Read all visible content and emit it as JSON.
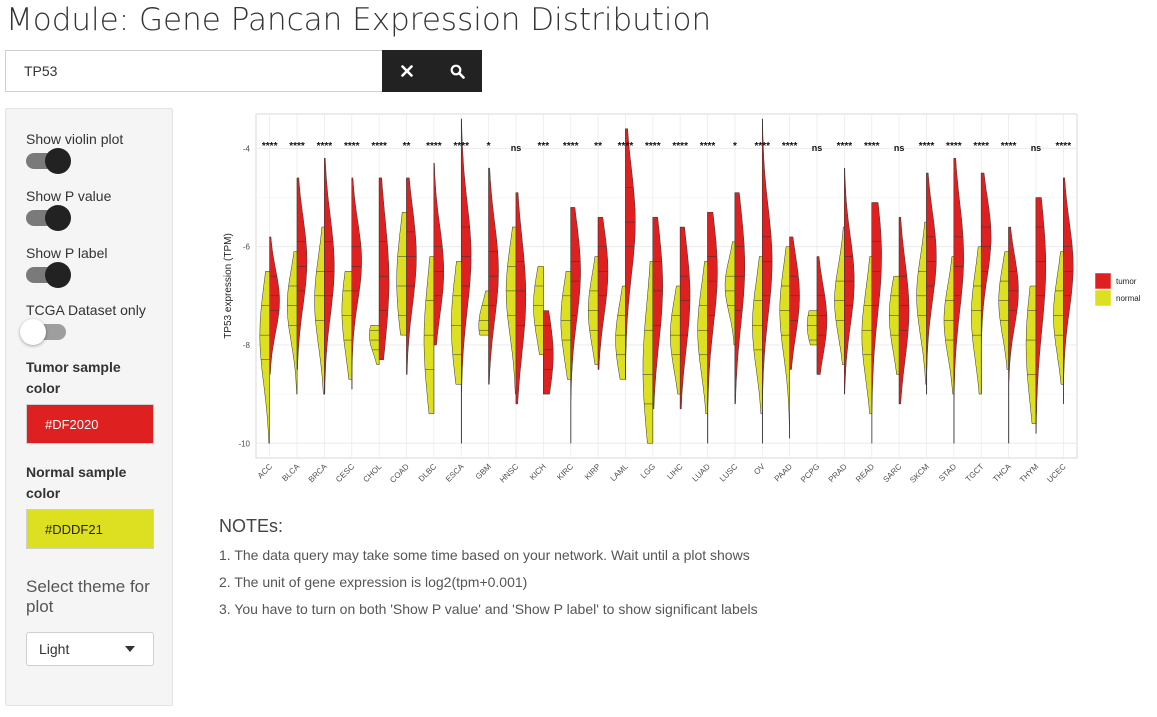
{
  "page": {
    "title": "Module: Gene Pancan Expression Distribution"
  },
  "search": {
    "value": "TP53",
    "clear_icon": "close-icon",
    "search_icon": "search-icon"
  },
  "sidebar": {
    "show_violin": "Show violin plot",
    "show_p_value": "Show P value",
    "show_p_label": "Show P label",
    "tcga_only": "TCGA Dataset only",
    "tumor_color_label": "Tumor sample color",
    "tumor_color_value": "#DF2020",
    "normal_color_label": "Normal sample color",
    "normal_color_value": "#DDDF21",
    "theme_label": "Select theme for plot",
    "theme_value": "Light",
    "toggles": {
      "show_violin": true,
      "show_p_value": true,
      "show_p_label": true,
      "tcga_only": false
    }
  },
  "notes": {
    "title": "NOTEs:",
    "items": [
      "1. The data query may take some time based on your network. Wait until a plot shows",
      "2. The unit of gene expression is log2(tpm+0.001)",
      "3. You have to turn on both 'Show P value' and 'Show P label' to show significant labels"
    ]
  },
  "colors": {
    "tumor": "#DF2020",
    "normal": "#DDDF21",
    "dark_button": "#222222"
  },
  "chart_data": {
    "type": "violin",
    "ylabel": "TP53 expression (TPM)",
    "ylim": [
      -10.3,
      -3.3
    ],
    "yticks": [
      -4,
      -6,
      -8,
      -10
    ],
    "legend": {
      "position": "right",
      "entries": [
        "tumor",
        "normal"
      ]
    },
    "grid": true,
    "categories": [
      "ACC",
      "BLCA",
      "BRCA",
      "CESC",
      "CHOL",
      "COAD",
      "DLBC",
      "ESCA",
      "GBM",
      "HNSC",
      "KICH",
      "KIRC",
      "KIRP",
      "LAML",
      "LGG",
      "LIHC",
      "LUAD",
      "LUSC",
      "OV",
      "PAAD",
      "PCPG",
      "PRAD",
      "READ",
      "SARC",
      "SKCM",
      "STAD",
      "TGCT",
      "THCA",
      "THYM",
      "UCEC"
    ],
    "p_labels": [
      "****",
      "****",
      "****",
      "****",
      "****",
      "**",
      "****",
      "****",
      "*",
      "ns",
      "***",
      "****",
      "**",
      "****",
      "****",
      "****",
      "****",
      "*",
      "****",
      "****",
      "ns",
      "****",
      "****",
      "ns",
      "****",
      "****",
      "****",
      "****",
      "ns",
      "****"
    ],
    "series": [
      {
        "name": "tumor",
        "values": [
          {
            "min": -8.6,
            "q1": -7.3,
            "med": -7.0,
            "q3": -6.6,
            "max": -5.8,
            "peak": -7.1
          },
          {
            "min": -8.5,
            "q1": -6.9,
            "med": -6.4,
            "q3": -5.9,
            "max": -4.6,
            "peak": -6.3
          },
          {
            "min": -9.0,
            "q1": -7.0,
            "med": -6.5,
            "q3": -5.9,
            "max": -4.2,
            "peak": -6.4
          },
          {
            "min": -8.9,
            "q1": -6.9,
            "med": -6.4,
            "q3": -6.0,
            "max": -4.6,
            "peak": -6.3
          },
          {
            "min": -8.3,
            "q1": -7.3,
            "med": -6.6,
            "q3": -5.9,
            "max": -4.6,
            "peak": -6.7
          },
          {
            "min": -8.6,
            "q1": -6.8,
            "med": -6.2,
            "q3": -5.7,
            "max": -4.6,
            "peak": -6.2
          },
          {
            "min": -8.0,
            "q1": -7.0,
            "med": -6.5,
            "q3": -6.0,
            "max": -4.3,
            "peak": -6.5
          },
          {
            "min": -10.0,
            "q1": -6.8,
            "med": -6.2,
            "q3": -5.6,
            "max": -3.4,
            "peak": -6.2
          },
          {
            "min": -8.8,
            "q1": -7.2,
            "med": -6.6,
            "q3": -6.1,
            "max": -4.4,
            "peak": -6.5
          },
          {
            "min": -9.2,
            "q1": -7.6,
            "med": -6.9,
            "q3": -6.3,
            "max": -4.9,
            "peak": -7.0
          },
          {
            "min": -9.0,
            "q1": -8.5,
            "med": -8.1,
            "q3": -7.6,
            "max": -7.3,
            "peak": -8.2
          },
          {
            "min": -10.0,
            "q1": -7.4,
            "med": -6.7,
            "q3": -6.3,
            "max": -5.2,
            "peak": -6.5
          },
          {
            "min": -8.5,
            "q1": -7.0,
            "med": -6.5,
            "q3": -6.0,
            "max": -5.4,
            "peak": -6.5
          },
          {
            "min": -8.7,
            "q1": -6.0,
            "med": -5.5,
            "q3": -4.8,
            "max": -3.6,
            "peak": -5.5
          },
          {
            "min": -9.3,
            "q1": -7.6,
            "med": -6.9,
            "q3": -6.3,
            "max": -5.4,
            "peak": -6.8
          },
          {
            "min": -9.3,
            "q1": -7.8,
            "med": -7.1,
            "q3": -6.6,
            "max": -5.6,
            "peak": -7.0
          },
          {
            "min": -10.0,
            "q1": -7.4,
            "med": -6.7,
            "q3": -6.2,
            "max": -5.3,
            "peak": -6.5
          },
          {
            "min": -9.2,
            "q1": -7.3,
            "med": -6.6,
            "q3": -6.0,
            "max": -4.9,
            "peak": -6.4
          },
          {
            "min": -10.0,
            "q1": -7.0,
            "med": -6.3,
            "q3": -5.8,
            "max": -3.4,
            "peak": -6.3
          },
          {
            "min": -8.5,
            "q1": -7.5,
            "med": -7.0,
            "q3": -6.6,
            "max": -5.8,
            "peak": -7.0
          },
          {
            "min": -8.6,
            "q1": -7.8,
            "med": -7.4,
            "q3": -7.0,
            "max": -6.2,
            "peak": -7.5
          },
          {
            "min": -9.0,
            "q1": -7.2,
            "med": -6.7,
            "q3": -6.2,
            "max": -4.4,
            "peak": -6.7
          },
          {
            "min": -10.0,
            "q1": -7.2,
            "med": -6.5,
            "q3": -5.9,
            "max": -5.1,
            "peak": -6.2
          },
          {
            "min": -9.2,
            "q1": -7.7,
            "med": -7.2,
            "q3": -6.6,
            "max": -5.4,
            "peak": -7.3
          },
          {
            "min": -9.0,
            "q1": -6.8,
            "med": -6.3,
            "q3": -5.8,
            "max": -4.5,
            "peak": -6.2
          },
          {
            "min": -10.0,
            "q1": -7.0,
            "med": -6.4,
            "q3": -5.8,
            "max": -4.2,
            "peak": -6.2
          },
          {
            "min": -9.0,
            "q1": -6.5,
            "med": -6.0,
            "q3": -5.6,
            "max": -4.5,
            "peak": -5.8
          },
          {
            "min": -10.0,
            "q1": -7.3,
            "med": -6.9,
            "q3": -6.5,
            "max": -5.6,
            "peak": -6.9
          },
          {
            "min": -9.8,
            "q1": -7.0,
            "med": -6.3,
            "q3": -5.6,
            "max": -5.0,
            "peak": -6.4
          },
          {
            "min": -9.2,
            "q1": -7.0,
            "med": -6.5,
            "q3": -6.0,
            "max": -4.6,
            "peak": -6.4
          }
        ]
      },
      {
        "name": "normal",
        "values": [
          {
            "min": -10.0,
            "q1": -8.3,
            "med": -7.8,
            "q3": -7.2,
            "max": -6.5,
            "peak": -7.8
          },
          {
            "min": -9.0,
            "q1": -7.6,
            "med": -7.2,
            "q3": -6.8,
            "max": -6.1,
            "peak": -7.2
          },
          {
            "min": -9.0,
            "q1": -7.5,
            "med": -7.0,
            "q3": -6.5,
            "max": -5.6,
            "peak": -7.1
          },
          {
            "min": -8.7,
            "q1": -7.9,
            "med": -7.4,
            "q3": -6.9,
            "max": -6.5,
            "peak": -7.3
          },
          {
            "min": -8.4,
            "q1": -8.1,
            "med": -7.9,
            "q3": -7.7,
            "max": -7.6,
            "peak": -7.8
          },
          {
            "min": -7.8,
            "q1": -7.4,
            "med": -6.8,
            "q3": -6.2,
            "max": -5.3,
            "peak": -6.7
          },
          {
            "min": -9.4,
            "q1": -8.5,
            "med": -7.8,
            "q3": -7.1,
            "max": -6.2,
            "peak": -7.9
          },
          {
            "min": -8.8,
            "q1": -8.2,
            "med": -7.6,
            "q3": -7.0,
            "max": -6.3,
            "peak": -7.6
          },
          {
            "min": -7.8,
            "q1": -7.7,
            "med": -7.5,
            "q3": -7.2,
            "max": -6.9,
            "peak": -7.6
          },
          {
            "min": -9.0,
            "q1": -7.4,
            "med": -6.9,
            "q3": -6.4,
            "max": -5.6,
            "peak": -6.9
          },
          {
            "min": -8.2,
            "q1": -7.6,
            "med": -7.2,
            "q3": -6.8,
            "max": -6.4,
            "peak": -7.2
          },
          {
            "min": -8.7,
            "q1": -7.9,
            "med": -7.5,
            "q3": -7.0,
            "max": -6.5,
            "peak": -7.5
          },
          {
            "min": -8.4,
            "q1": -7.7,
            "med": -7.3,
            "q3": -6.9,
            "max": -6.2,
            "peak": -7.3
          },
          {
            "min": -8.7,
            "q1": -8.2,
            "med": -7.8,
            "q3": -7.4,
            "max": -6.8,
            "peak": -7.9
          },
          {
            "min": -10.0,
            "q1": -9.2,
            "med": -8.6,
            "q3": -7.7,
            "max": -6.3,
            "peak": -8.5
          },
          {
            "min": -9.0,
            "q1": -8.2,
            "med": -7.8,
            "q3": -7.4,
            "max": -6.8,
            "peak": -7.8
          },
          {
            "min": -9.4,
            "q1": -8.2,
            "med": -7.7,
            "q3": -7.2,
            "max": -6.3,
            "peak": -7.7
          },
          {
            "min": -8.0,
            "q1": -7.2,
            "med": -6.9,
            "q3": -6.6,
            "max": -5.9,
            "peak": -6.8
          },
          {
            "min": -9.4,
            "q1": -8.1,
            "med": -7.6,
            "q3": -7.1,
            "max": -6.2,
            "peak": -7.6
          },
          {
            "min": -9.9,
            "q1": -7.8,
            "med": -7.3,
            "q3": -6.8,
            "max": -6.0,
            "peak": -7.3
          },
          {
            "min": -8.0,
            "q1": -7.9,
            "med": -7.6,
            "q3": -7.4,
            "max": -7.3,
            "peak": -7.6
          },
          {
            "min": -8.4,
            "q1": -7.5,
            "med": -7.1,
            "q3": -6.7,
            "max": -5.6,
            "peak": -7.1
          },
          {
            "min": -9.4,
            "q1": -8.2,
            "med": -7.7,
            "q3": -7.2,
            "max": -6.2,
            "peak": -7.8
          },
          {
            "min": -8.6,
            "q1": -7.8,
            "med": -7.4,
            "q3": -7.0,
            "max": -6.6,
            "peak": -7.4
          },
          {
            "min": -8.8,
            "q1": -7.4,
            "med": -7.0,
            "q3": -6.5,
            "max": -5.5,
            "peak": -7.0
          },
          {
            "min": -9.0,
            "q1": -7.9,
            "med": -7.5,
            "q3": -7.1,
            "max": -6.2,
            "peak": -7.5
          },
          {
            "min": -9.0,
            "q1": -7.8,
            "med": -7.3,
            "q3": -6.8,
            "max": -6.0,
            "peak": -7.4
          },
          {
            "min": -8.5,
            "q1": -7.5,
            "med": -7.1,
            "q3": -6.7,
            "max": -6.1,
            "peak": -7.1
          },
          {
            "min": -9.6,
            "q1": -8.6,
            "med": -7.9,
            "q3": -7.3,
            "max": -6.8,
            "peak": -8.0
          },
          {
            "min": -8.8,
            "q1": -7.8,
            "med": -7.4,
            "q3": -6.9,
            "max": -6.1,
            "peak": -7.4
          }
        ]
      }
    ]
  }
}
